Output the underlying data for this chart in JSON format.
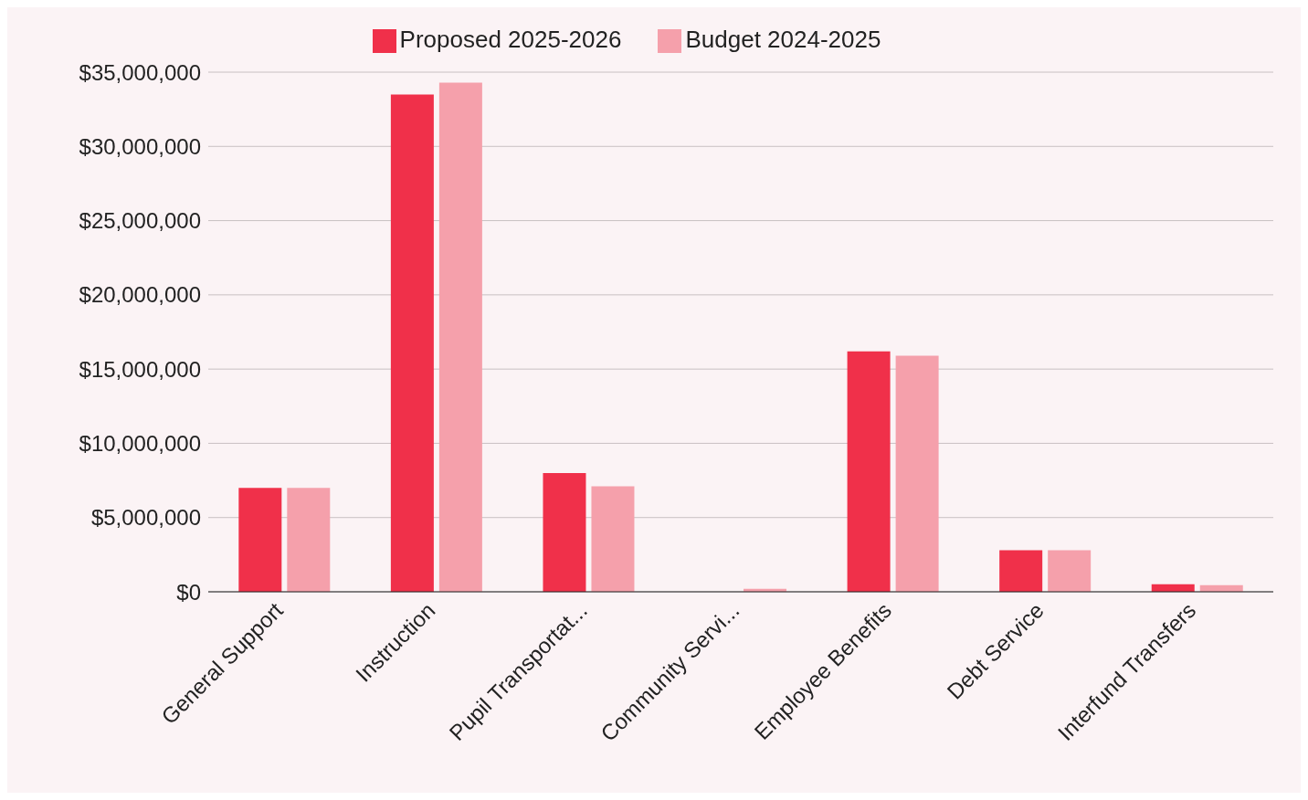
{
  "chart_data": {
    "type": "bar",
    "categories": [
      "General Support",
      "Instruction",
      "Pupil Transportat...",
      "Community Servi...",
      "Employee Benefits",
      "Debt Service",
      "Interfund Transfers"
    ],
    "series": [
      {
        "name": "Proposed 2025-2026",
        "color": "#f0304a",
        "values": [
          7000000,
          33500000,
          8000000,
          0,
          16200000,
          2800000,
          500000
        ]
      },
      {
        "name": "Budget 2024-2025",
        "color": "#f5a0ab",
        "values": [
          7000000,
          34300000,
          7100000,
          200000,
          15900000,
          2800000,
          450000
        ]
      }
    ],
    "ylim": [
      0,
      35000000
    ],
    "yticks": [
      {
        "value": 0,
        "label": "$0"
      },
      {
        "value": 5000000,
        "label": "$5,000,000"
      },
      {
        "value": 10000000,
        "label": "$10,000,000"
      },
      {
        "value": 15000000,
        "label": "$15,000,000"
      },
      {
        "value": 20000000,
        "label": "$20,000,000"
      },
      {
        "value": 25000000,
        "label": "$25,000,000"
      },
      {
        "value": 30000000,
        "label": "$30,000,000"
      },
      {
        "value": 35000000,
        "label": "$35,000,000"
      }
    ],
    "grid": "y",
    "legend": "top"
  }
}
